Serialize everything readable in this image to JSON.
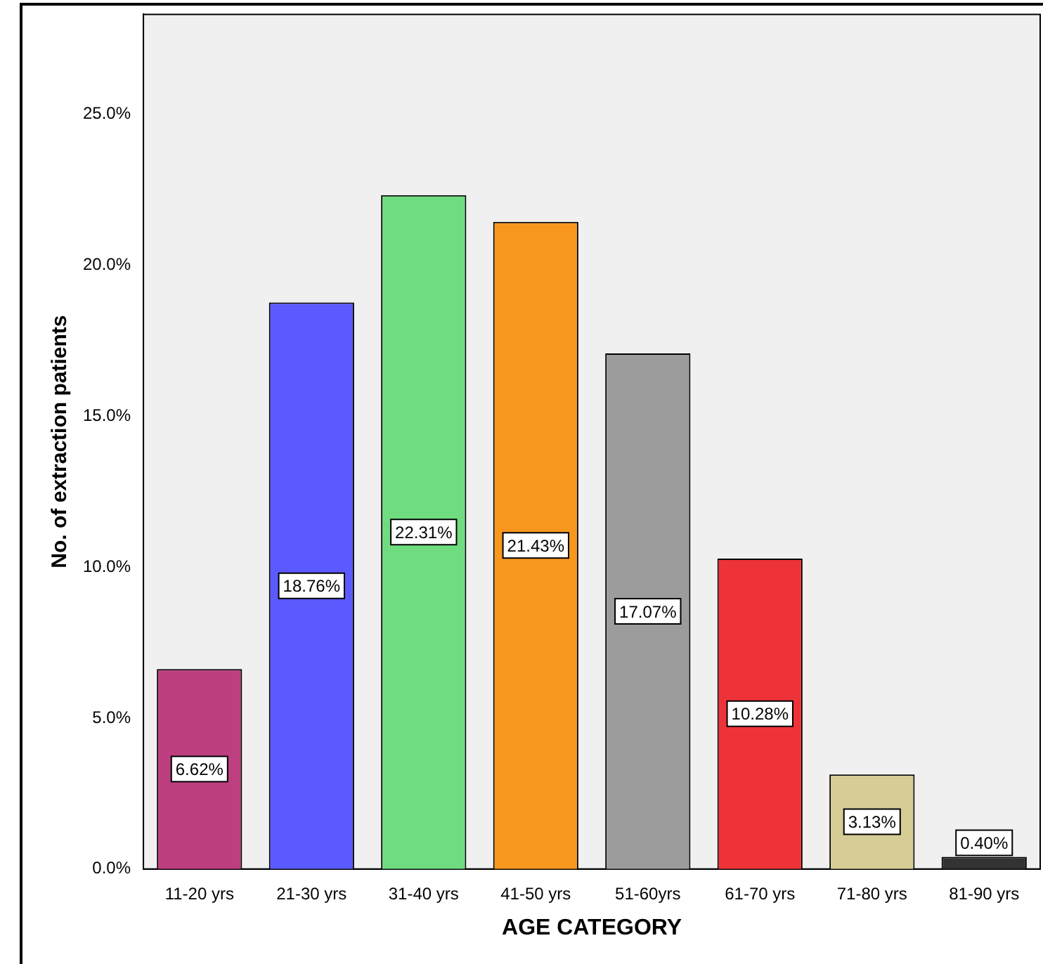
{
  "chart_data": {
    "type": "bar",
    "xlabel": "AGE CATEGORY",
    "ylabel": "No. of extraction patients",
    "categories": [
      "11-20 yrs",
      "21-30 yrs",
      "31-40 yrs",
      "41-50 yrs",
      "51-60yrs",
      "61-70 yrs",
      "71-80 yrs",
      "81-90 yrs"
    ],
    "values": [
      6.62,
      18.76,
      22.31,
      21.43,
      17.07,
      10.28,
      3.13,
      0.4
    ],
    "colors": [
      "#be3f7f",
      "#5a5aff",
      "#70dc80",
      "#f8971e",
      "#9c9c9c",
      "#ee3338",
      "#d6cc96",
      "#333333"
    ],
    "value_labels": [
      "6.62%",
      "18.76%",
      "22.31%",
      "21.43%",
      "17.07%",
      "10.28%",
      "3.13%",
      "0.40%"
    ],
    "ylim": [
      0,
      28.3
    ],
    "yticks": [
      {
        "value": 0,
        "label": "0.0%"
      },
      {
        "value": 5,
        "label": "5.0%"
      },
      {
        "value": 10,
        "label": "10.0%"
      },
      {
        "value": 15,
        "label": "15.0%"
      },
      {
        "value": 20,
        "label": "20.0%"
      },
      {
        "value": 25,
        "label": "25.0%"
      }
    ],
    "grid": false,
    "legend": false
  }
}
